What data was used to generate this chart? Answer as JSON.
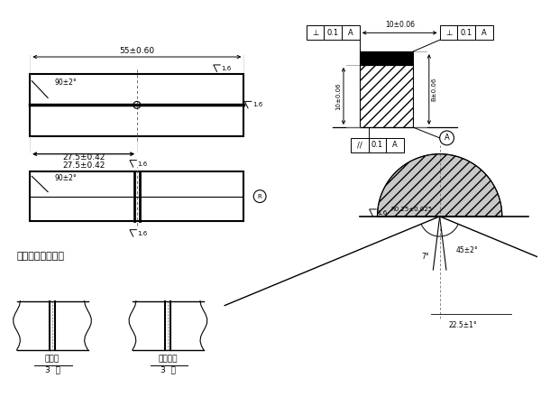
{
  "bg_color": "#ffffff",
  "dim_55": "55±0.60",
  "dim_275": "27.5±0.42",
  "dim_90": "90±2°",
  "groove_label": "开槽位置示意图：",
  "weld_zone_label": "焊缝区",
  "heat_zone_label": "热影响区",
  "pieces_label": "3  件",
  "dim_10": "10±0.06",
  "dim_B": "B±0.06",
  "angle_label": "45±2°",
  "angle2_label": "7°",
  "angle3_label": "22.5±1°",
  "radius_label": "R0.25±0.025"
}
